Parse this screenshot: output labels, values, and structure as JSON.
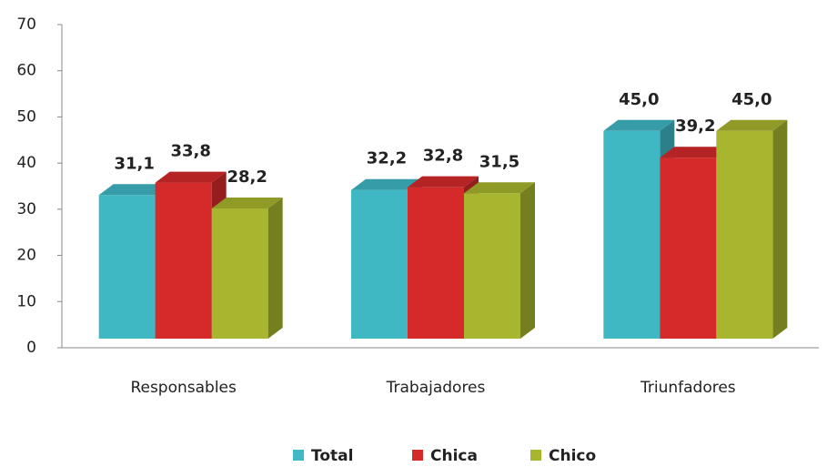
{
  "chart_data": {
    "type": "bar3d",
    "categories": [
      "Responsables",
      "Trabajadores",
      "Triunfadores"
    ],
    "series": [
      {
        "name": "Total",
        "color": "#3fb8c4",
        "values": [
          31.1,
          32.2,
          45.0
        ],
        "value_labels": [
          "31,1",
          "32,2",
          "45,0"
        ]
      },
      {
        "name": "Chica",
        "color": "#d42a2a",
        "values": [
          33.8,
          32.8,
          39.2
        ],
        "value_labels": [
          "33,8",
          "32,8",
          "39,2"
        ]
      },
      {
        "name": "Chico",
        "color": "#a8b52e",
        "values": [
          28.2,
          31.5,
          45.0
        ],
        "value_labels": [
          "28,2",
          "31,5",
          "45,0"
        ]
      }
    ],
    "ylim": [
      0,
      70
    ],
    "yticks": [
      0,
      10,
      20,
      30,
      40,
      50,
      60,
      70
    ],
    "grid": false
  }
}
